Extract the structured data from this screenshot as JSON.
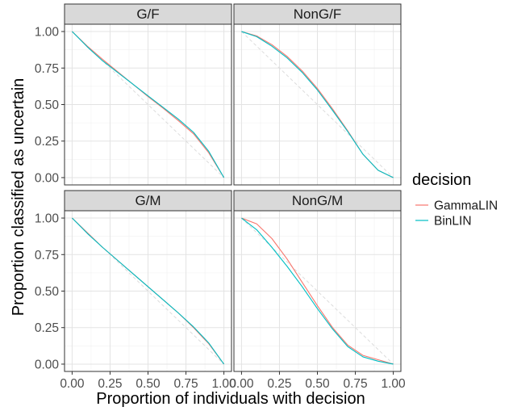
{
  "chart_data": {
    "type": "line",
    "xlabel": "Proportion of individuals with decision",
    "ylabel": "Proportion classified as uncertain",
    "xlim": [
      0,
      1
    ],
    "ylim": [
      0,
      1
    ],
    "x_ticks": [
      "0.00",
      "0.25",
      "0.50",
      "0.75",
      "1.00"
    ],
    "y_ticks": [
      "0.00",
      "0.25",
      "0.50",
      "0.75",
      "1.00"
    ],
    "grid": true,
    "legend": {
      "title": "decision",
      "position": "right",
      "entries": [
        {
          "name": "GammaLIN",
          "color": "#F8766D"
        },
        {
          "name": "BinLIN",
          "color": "#00BFC4"
        }
      ]
    },
    "reference_line": {
      "style": "dashed",
      "color": "#dcdcdc",
      "points": [
        [
          0,
          1
        ],
        [
          1,
          0
        ]
      ]
    },
    "panels": [
      {
        "label": "G/F",
        "series": [
          {
            "name": "GammaLIN",
            "color": "#F8766D",
            "x": [
              0,
              0.1,
              0.2,
              0.3,
              0.4,
              0.5,
              0.6,
              0.7,
              0.8,
              0.9,
              1.0
            ],
            "y": [
              1.0,
              0.9,
              0.81,
              0.725,
              0.64,
              0.555,
              0.475,
              0.39,
              0.3,
              0.17,
              0.0
            ]
          },
          {
            "name": "BinLIN",
            "color": "#00BFC4",
            "x": [
              0,
              0.1,
              0.2,
              0.3,
              0.4,
              0.5,
              0.6,
              0.7,
              0.8,
              0.9,
              1.0
            ],
            "y": [
              1.0,
              0.895,
              0.8,
              0.72,
              0.64,
              0.56,
              0.48,
              0.4,
              0.31,
              0.18,
              0.0
            ]
          }
        ]
      },
      {
        "label": "NonG/F",
        "series": [
          {
            "name": "GammaLIN",
            "color": "#F8766D",
            "x": [
              0,
              0.1,
              0.2,
              0.3,
              0.4,
              0.5,
              0.6,
              0.7,
              0.8,
              0.9,
              1.0
            ],
            "y": [
              1.0,
              0.97,
              0.91,
              0.83,
              0.73,
              0.61,
              0.47,
              0.32,
              0.16,
              0.05,
              0.0
            ]
          },
          {
            "name": "BinLIN",
            "color": "#00BFC4",
            "x": [
              0,
              0.1,
              0.2,
              0.3,
              0.4,
              0.5,
              0.6,
              0.7,
              0.8,
              0.9,
              1.0
            ],
            "y": [
              1.0,
              0.965,
              0.9,
              0.82,
              0.72,
              0.6,
              0.46,
              0.315,
              0.16,
              0.05,
              0.0
            ]
          }
        ]
      },
      {
        "label": "G/M",
        "series": [
          {
            "name": "GammaLIN",
            "color": "#F8766D",
            "x": [
              0,
              0.1,
              0.2,
              0.3,
              0.4,
              0.5,
              0.6,
              0.7,
              0.8,
              0.9,
              1.0
            ],
            "y": [
              1.0,
              0.9,
              0.8,
              0.71,
              0.62,
              0.53,
              0.44,
              0.35,
              0.25,
              0.14,
              0.0
            ]
          },
          {
            "name": "BinLIN",
            "color": "#00BFC4",
            "x": [
              0,
              0.1,
              0.2,
              0.3,
              0.4,
              0.5,
              0.6,
              0.7,
              0.8,
              0.9,
              1.0
            ],
            "y": [
              1.0,
              0.895,
              0.8,
              0.71,
              0.62,
              0.53,
              0.44,
              0.35,
              0.255,
              0.145,
              0.0
            ]
          }
        ]
      },
      {
        "label": "NonG/M",
        "series": [
          {
            "name": "GammaLIN",
            "color": "#F8766D",
            "x": [
              0,
              0.1,
              0.2,
              0.3,
              0.4,
              0.5,
              0.6,
              0.7,
              0.8,
              0.9,
              1.0
            ],
            "y": [
              1.0,
              0.96,
              0.86,
              0.72,
              0.56,
              0.4,
              0.25,
              0.13,
              0.06,
              0.03,
              0.0
            ]
          },
          {
            "name": "BinLIN",
            "color": "#00BFC4",
            "x": [
              0,
              0.1,
              0.2,
              0.3,
              0.4,
              0.5,
              0.6,
              0.7,
              0.8,
              0.9,
              1.0
            ],
            "y": [
              1.0,
              0.92,
              0.8,
              0.67,
              0.53,
              0.38,
              0.24,
              0.12,
              0.05,
              0.02,
              0.0
            ]
          }
        ]
      }
    ]
  }
}
